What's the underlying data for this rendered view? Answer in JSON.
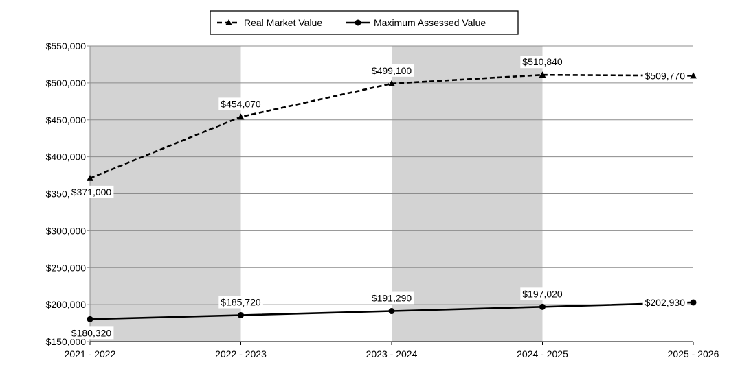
{
  "chart_data": {
    "type": "line",
    "categories": [
      "2021 - 2022",
      "2022 - 2023",
      "2023 - 2024",
      "2024 - 2025",
      "2025 - 2026"
    ],
    "y_tick_labels": [
      "$150,000",
      "$200,000",
      "$250,000",
      "$300,000",
      "$350,000",
      "$400,000",
      "$450,000",
      "$500,000",
      "$550,000"
    ],
    "y_ticks": [
      150000,
      200000,
      250000,
      300000,
      350000,
      400000,
      450000,
      500000,
      550000
    ],
    "ylim": [
      150000,
      550000
    ],
    "grid": true,
    "legend_position": "top-center",
    "shaded_bands": [
      "2021 - 2022",
      "2023 - 2024"
    ],
    "band_color": "#d3d3d3",
    "series": [
      {
        "name": "Real Market Value",
        "marker": "triangle",
        "line_style": "dashed",
        "color": "#000000",
        "values": [
          371000,
          454070,
          499100,
          510840,
          509770
        ],
        "labels": [
          "$371,000",
          "$454,070",
          "$499,100",
          "$510,840",
          "$509,770"
        ]
      },
      {
        "name": "Maximum Assessed Value",
        "marker": "circle",
        "line_style": "solid",
        "color": "#000000",
        "values": [
          180320,
          185720,
          191290,
          197020,
          202930
        ],
        "labels": [
          "$180,320",
          "$185,720",
          "$191,290",
          "$197,020",
          "$202,930"
        ]
      }
    ]
  }
}
